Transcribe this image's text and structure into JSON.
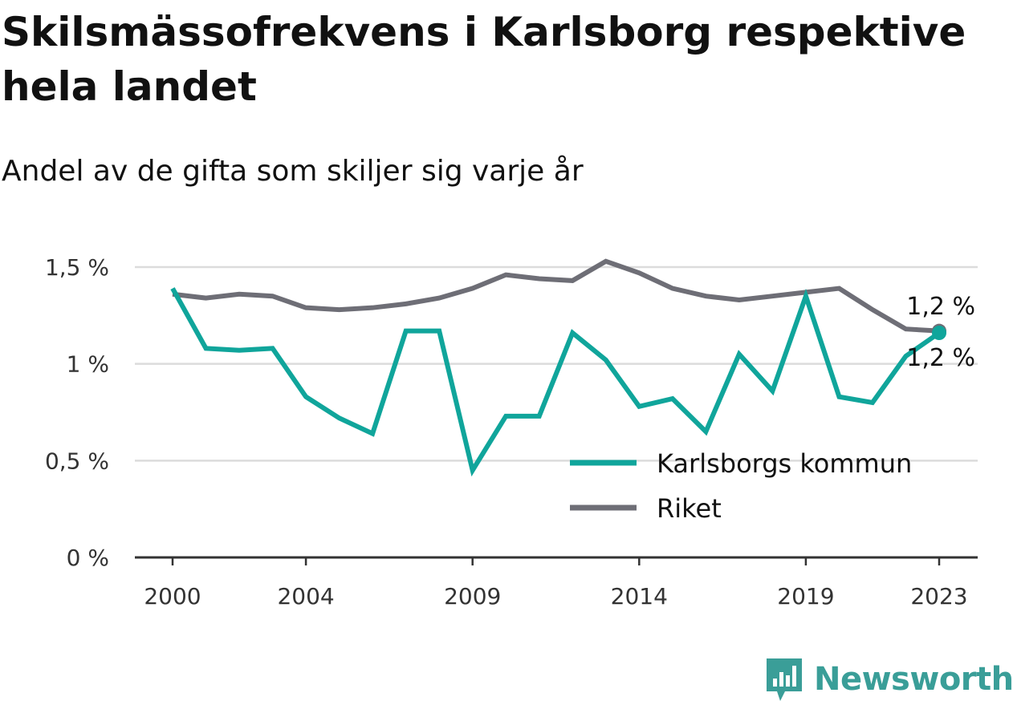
{
  "header": {
    "title": "Skilsmässofrekvens i Karlsborg respektive hela landet",
    "subtitle": "Andel av de gifta som skiljer sig varje år"
  },
  "brand": {
    "name": "Newsworthy",
    "icon": "newsworthy-logo-icon",
    "color": "#3a9e98"
  },
  "chart_data": {
    "type": "line",
    "title": "Skilsmässofrekvens i Karlsborg respektive hela landet",
    "subtitle": "Andel av de gifta som skiljer sig varje år",
    "xlabel": "",
    "ylabel": "",
    "x": [
      2000,
      2001,
      2002,
      2003,
      2004,
      2005,
      2006,
      2007,
      2008,
      2009,
      2010,
      2011,
      2012,
      2013,
      2014,
      2015,
      2016,
      2017,
      2018,
      2019,
      2020,
      2021,
      2022,
      2023
    ],
    "xticks": [
      2000,
      2004,
      2009,
      2014,
      2019,
      2023
    ],
    "xtick_labels": [
      "2000",
      "2004",
      "2009",
      "2014",
      "2019",
      "2023"
    ],
    "ylim": [
      0,
      1.5
    ],
    "yticks": [
      0,
      0.5,
      1,
      1.5
    ],
    "ytick_labels": [
      "0 %",
      "0,5 %",
      "1 %",
      "1,5 %"
    ],
    "grid": true,
    "legend": "bottom-right",
    "series": [
      {
        "name": "Karlsborgs kommun",
        "color": "#10a59b",
        "values": [
          1.39,
          1.08,
          1.07,
          1.08,
          0.83,
          0.72,
          0.64,
          1.17,
          1.17,
          0.45,
          0.73,
          0.73,
          1.16,
          1.02,
          0.78,
          0.82,
          0.65,
          1.05,
          0.86,
          1.35,
          0.83,
          0.8,
          1.04,
          1.16
        ],
        "end_label": "1,2 %"
      },
      {
        "name": "Riket",
        "color": "#6e6e76",
        "values": [
          1.36,
          1.34,
          1.36,
          1.35,
          1.29,
          1.28,
          1.29,
          1.31,
          1.34,
          1.39,
          1.46,
          1.44,
          1.43,
          1.53,
          1.47,
          1.39,
          1.35,
          1.33,
          1.35,
          1.37,
          1.39,
          1.28,
          1.18,
          1.17
        ],
        "end_label": "1,2 %"
      }
    ]
  }
}
